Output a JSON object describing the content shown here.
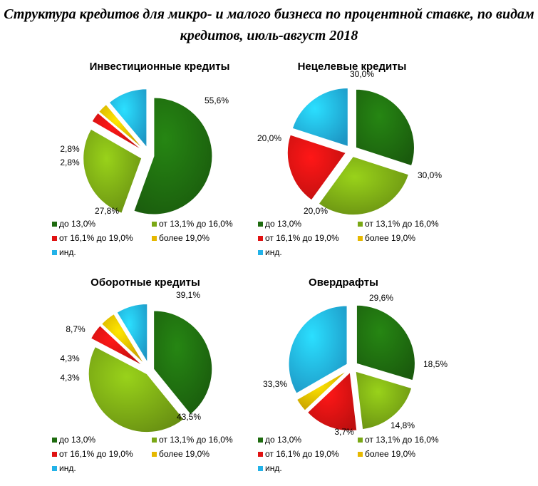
{
  "title_line1": "Структура кредитов для микро- и малого бизнеса по процентной ставке, по видам",
  "title_line2": "кредитов, июль-август 2018",
  "colors": {
    "dark_green": "#1e6b0f",
    "light_green": "#7aa815",
    "red": "#e01212",
    "yellow": "#e6b800",
    "blue": "#22b2e8"
  },
  "legend_labels": [
    "до 13,0%",
    "от 13,1% до 16,0%",
    "от 16,1% до 19,0%",
    "более 19,0%",
    "инд."
  ],
  "chart_data": [
    {
      "type": "pie",
      "title": "Инвестиционные кредиты",
      "categories": [
        "до 13,0%",
        "от 13,1% до 16,0%",
        "от 16,1% до 19,0%",
        "более 19,0%",
        "инд."
      ],
      "values": [
        55.6,
        27.8,
        2.8,
        2.8,
        11.1
      ],
      "labels": [
        "55,6%",
        "27,8%",
        "2,8%",
        "2,8%",
        ""
      ],
      "legend_position": "bottom"
    },
    {
      "type": "pie",
      "title": "Нецелевые кредиты",
      "categories": [
        "до 13,0%",
        "от 13,1% до 16,0%",
        "от 16,1% до 19,0%",
        "более 19,0%",
        "инд."
      ],
      "values": [
        30.0,
        30.0,
        20.0,
        0.0,
        20.0
      ],
      "labels": [
        "30,0%",
        "30,0%",
        "20,0%",
        "",
        "20,0%"
      ],
      "legend_position": "bottom"
    },
    {
      "type": "pie",
      "title": "Оборотные кредиты",
      "categories": [
        "до 13,0%",
        "от 13,1% до 16,0%",
        "от 16,1% до 19,0%",
        "более 19,0%",
        "инд."
      ],
      "values": [
        39.1,
        43.5,
        4.3,
        4.3,
        8.7
      ],
      "labels": [
        "39,1%",
        "43,5%",
        "4,3%",
        "4,3%",
        "8,7%"
      ],
      "legend_position": "bottom"
    },
    {
      "type": "pie",
      "title": "Овердрафты",
      "categories": [
        "до 13,0%",
        "от 13,1% до 16,0%",
        "от 16,1% до 19,0%",
        "более 19,0%",
        "инд."
      ],
      "values": [
        29.6,
        18.5,
        14.8,
        3.7,
        33.3
      ],
      "labels": [
        "29,6%",
        "18,5%",
        "14,8%",
        "3,7%",
        "33,3%"
      ],
      "legend_position": "bottom"
    }
  ]
}
